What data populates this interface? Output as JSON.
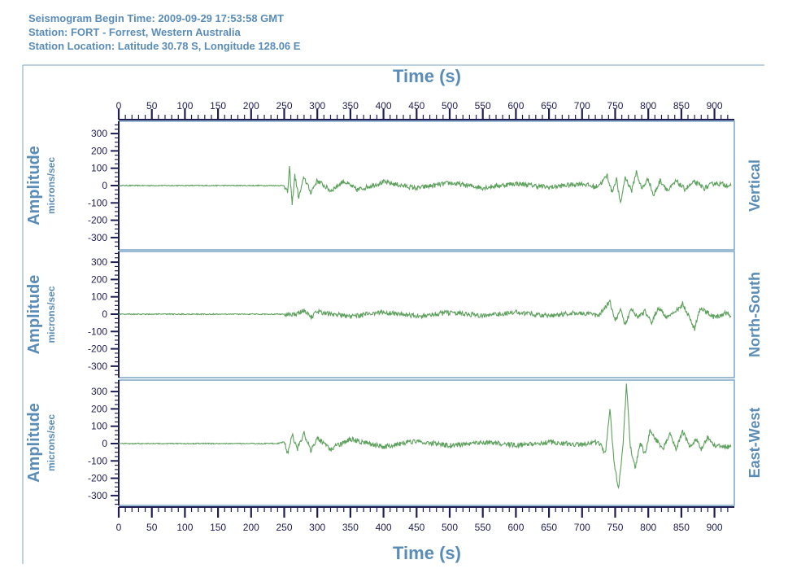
{
  "header": {
    "line1": "Seismogram Begin Time: 2009-09-29 17:53:58 GMT",
    "line2": "Station: FORT - Forrest, Western Australia",
    "line3": "Station Location: Latitude 30.78 S, Longitude 128.06 E"
  },
  "colors": {
    "trace": "#5ca05c",
    "axis": "#1e1e55",
    "title": "#5a8cb8",
    "frame": "#7aa6c6"
  },
  "chart_data": {
    "type": "line",
    "xlabel": "Time (s)",
    "x_ticks": [
      0,
      50,
      100,
      150,
      200,
      250,
      300,
      350,
      400,
      450,
      500,
      550,
      600,
      650,
      700,
      750,
      800,
      850,
      900
    ],
    "xlim": [
      0,
      930
    ],
    "ylabel": "Amplitude",
    "yunit": "microns/sec",
    "y_ticks": [
      -300,
      -200,
      -100,
      0,
      100,
      200,
      300
    ],
    "ylim": [
      -360,
      360
    ],
    "grid": false,
    "panels": [
      {
        "name": "Vertical",
        "points": [
          [
            0,
            0
          ],
          [
            250,
            0
          ],
          [
            255,
            -40
          ],
          [
            258,
            100
          ],
          [
            262,
            -110
          ],
          [
            266,
            60
          ],
          [
            272,
            -70
          ],
          [
            280,
            50
          ],
          [
            290,
            -40
          ],
          [
            300,
            30
          ],
          [
            320,
            -30
          ],
          [
            340,
            25
          ],
          [
            360,
            -25
          ],
          [
            400,
            20
          ],
          [
            450,
            -15
          ],
          [
            500,
            15
          ],
          [
            550,
            -12
          ],
          [
            600,
            12
          ],
          [
            650,
            -10
          ],
          [
            700,
            12
          ],
          [
            720,
            -10
          ],
          [
            730,
            20
          ],
          [
            738,
            60
          ],
          [
            745,
            -40
          ],
          [
            752,
            40
          ],
          [
            758,
            -110
          ],
          [
            765,
            50
          ],
          [
            775,
            -30
          ],
          [
            782,
            80
          ],
          [
            790,
            -20
          ],
          [
            800,
            40
          ],
          [
            808,
            -60
          ],
          [
            818,
            30
          ],
          [
            830,
            -30
          ],
          [
            842,
            25
          ],
          [
            855,
            -20
          ],
          [
            870,
            20
          ],
          [
            885,
            -15
          ],
          [
            900,
            15
          ],
          [
            925,
            0
          ]
        ]
      },
      {
        "name": "North-South",
        "points": [
          [
            0,
            0
          ],
          [
            270,
            0
          ],
          [
            280,
            20
          ],
          [
            290,
            -20
          ],
          [
            300,
            15
          ],
          [
            350,
            -15
          ],
          [
            400,
            12
          ],
          [
            450,
            -12
          ],
          [
            500,
            10
          ],
          [
            550,
            -10
          ],
          [
            600,
            10
          ],
          [
            650,
            -8
          ],
          [
            700,
            8
          ],
          [
            725,
            -10
          ],
          [
            735,
            40
          ],
          [
            742,
            70
          ],
          [
            750,
            -40
          ],
          [
            758,
            30
          ],
          [
            765,
            -60
          ],
          [
            775,
            30
          ],
          [
            785,
            -20
          ],
          [
            795,
            20
          ],
          [
            805,
            -50
          ],
          [
            815,
            40
          ],
          [
            828,
            -20
          ],
          [
            840,
            10
          ],
          [
            852,
            60
          ],
          [
            862,
            -20
          ],
          [
            870,
            -85
          ],
          [
            878,
            30
          ],
          [
            890,
            10
          ],
          [
            900,
            -20
          ],
          [
            915,
            5
          ],
          [
            925,
            -10
          ]
        ]
      },
      {
        "name": "East-West",
        "points": [
          [
            0,
            0
          ],
          [
            240,
            0
          ],
          [
            250,
            10
          ],
          [
            255,
            -60
          ],
          [
            262,
            50
          ],
          [
            270,
            -30
          ],
          [
            280,
            60
          ],
          [
            290,
            -40
          ],
          [
            300,
            30
          ],
          [
            320,
            -30
          ],
          [
            350,
            25
          ],
          [
            400,
            -20
          ],
          [
            450,
            15
          ],
          [
            500,
            -12
          ],
          [
            550,
            10
          ],
          [
            600,
            -10
          ],
          [
            650,
            8
          ],
          [
            700,
            -8
          ],
          [
            725,
            10
          ],
          [
            735,
            -60
          ],
          [
            742,
            200
          ],
          [
            748,
            -100
          ],
          [
            755,
            -260
          ],
          [
            762,
            0
          ],
          [
            767,
            350
          ],
          [
            773,
            -20
          ],
          [
            780,
            -140
          ],
          [
            788,
            0
          ],
          [
            795,
            -60
          ],
          [
            803,
            80
          ],
          [
            812,
            20
          ],
          [
            822,
            -40
          ],
          [
            832,
            60
          ],
          [
            842,
            -30
          ],
          [
            852,
            70
          ],
          [
            862,
            -10
          ],
          [
            872,
            20
          ],
          [
            880,
            -30
          ],
          [
            890,
            40
          ],
          [
            900,
            -10
          ],
          [
            925,
            -20
          ]
        ]
      }
    ]
  }
}
